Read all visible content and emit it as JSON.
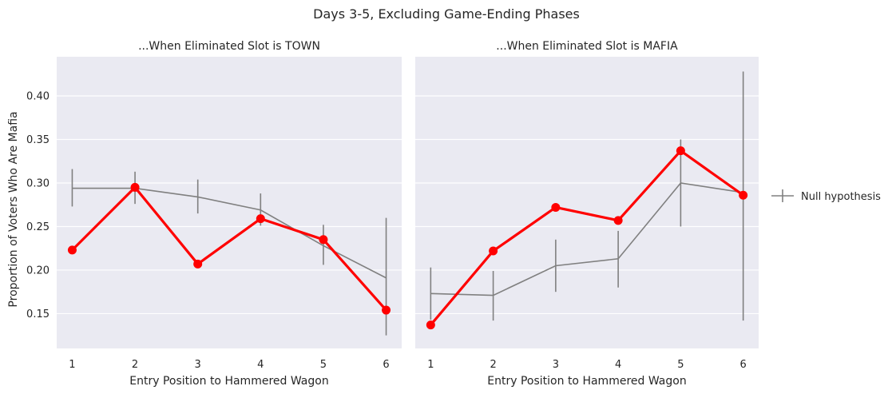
{
  "figure": {
    "suptitle": "Days 3-5, Excluding Game-Ending Phases",
    "shared_ylabel": "Proportion of Voters Who Are Mafia",
    "legend": {
      "label": "Null hypothesis",
      "placement": "right-center"
    },
    "colors": {
      "background": "#eaeaf2",
      "grid": "#ffffff",
      "observed": "#ff0000",
      "null": "#808080",
      "text": "#262626"
    }
  },
  "chart_data": [
    {
      "type": "line",
      "title": "...When Eliminated Slot is TOWN",
      "xlabel": "Entry Position to Hammered Wagon",
      "ylabel": "Proportion of Voters Who Are Mafia",
      "categories": [
        "1",
        "2",
        "3",
        "4",
        "5",
        "6"
      ],
      "ylim": [
        0.11,
        0.445
      ],
      "yticks": [
        0.15,
        0.2,
        0.25,
        0.3,
        0.35,
        0.4
      ],
      "ytick_labels": [
        "0.15",
        "0.20",
        "0.25",
        "0.30",
        "0.35",
        "0.40"
      ],
      "grid": true,
      "series": [
        {
          "name": "",
          "role": "observed",
          "color": "#ff0000",
          "values": [
            0.223,
            0.295,
            0.207,
            0.259,
            0.235,
            0.154
          ]
        },
        {
          "name": "Null hypothesis",
          "role": "null",
          "color": "#808080",
          "values": [
            0.294,
            0.294,
            0.284,
            0.269,
            0.228,
            0.191
          ],
          "err_low": [
            0.273,
            0.276,
            0.265,
            0.251,
            0.206,
            0.125
          ],
          "err_high": [
            0.316,
            0.313,
            0.304,
            0.288,
            0.252,
            0.26
          ]
        }
      ]
    },
    {
      "type": "line",
      "title": "...When Eliminated Slot is MAFIA",
      "xlabel": "Entry Position to Hammered Wagon",
      "ylabel": "",
      "categories": [
        "1",
        "2",
        "3",
        "4",
        "5",
        "6"
      ],
      "ylim": [
        0.11,
        0.445
      ],
      "grid": true,
      "series": [
        {
          "name": "",
          "role": "observed",
          "color": "#ff0000",
          "values": [
            0.137,
            0.222,
            0.272,
            0.257,
            0.337,
            0.286
          ]
        },
        {
          "name": "Null hypothesis",
          "role": "null",
          "color": "#808080",
          "values": [
            0.173,
            0.171,
            0.205,
            0.213,
            0.3,
            0.289
          ],
          "err_low": [
            0.143,
            0.142,
            0.175,
            0.18,
            0.25,
            0.142
          ],
          "err_high": [
            0.203,
            0.199,
            0.235,
            0.245,
            0.35,
            0.428
          ]
        }
      ]
    }
  ]
}
